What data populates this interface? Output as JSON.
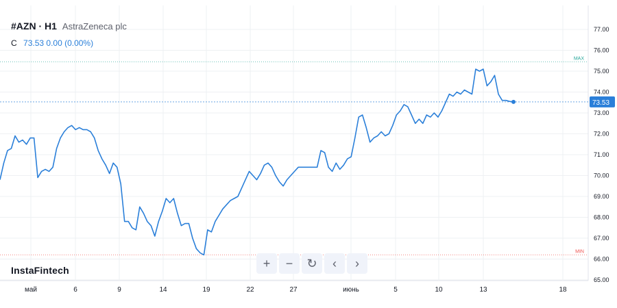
{
  "header": {
    "symbol": "#AZN · H1",
    "company": "AstraZeneca plc",
    "close_prefix": "C",
    "close_value": "73.53",
    "change": "0.00 (0.00%)"
  },
  "brand": "InstaFintech",
  "toolbar": [
    {
      "icon": "plus-icon",
      "glyph": "+"
    },
    {
      "icon": "minus-icon",
      "glyph": "−"
    },
    {
      "icon": "reset-icon",
      "glyph": "↻"
    },
    {
      "icon": "chevron-left-icon",
      "glyph": "‹"
    },
    {
      "icon": "chevron-right-icon",
      "glyph": "›"
    }
  ],
  "colors": {
    "line": "#2a7fd9",
    "grid": "#eef0f3",
    "max_marker": "#26a69a",
    "min_marker": "#ef5350",
    "price_tag": "#2a7fd9"
  },
  "chart_data": {
    "type": "line",
    "ylim": [
      65.0,
      77.5
    ],
    "yticks": [
      "77.00",
      "76.00",
      "75.00",
      "74.00",
      "73.00",
      "72.00",
      "71.00",
      "70.00",
      "69.00",
      "68.00",
      "67.00",
      "66.00",
      "65.00"
    ],
    "x_tick_labels": [
      "май",
      "6",
      "9",
      "14",
      "19",
      "22",
      "27",
      "июнь",
      "5",
      "10",
      "13",
      "18"
    ],
    "max_value": 75.45,
    "max_label": "MAX",
    "min_value": 66.2,
    "min_label": "MIN",
    "last_price": 73.53,
    "last_price_label": "73.53",
    "series": [
      {
        "values": [
          69.8,
          70.6,
          71.2,
          71.3,
          71.9,
          71.6,
          71.7,
          71.5,
          71.8,
          71.8,
          69.9,
          70.2,
          70.3,
          70.2,
          70.4,
          71.3,
          71.8,
          72.1,
          72.3,
          72.4,
          72.2,
          72.3,
          72.2,
          72.2,
          72.1,
          71.8,
          71.2,
          70.8,
          70.5,
          70.1,
          70.6,
          70.4,
          69.6,
          67.8,
          67.8,
          67.5,
          67.4,
          68.5,
          68.2,
          67.8,
          67.6,
          67.1,
          67.8,
          68.3,
          68.9,
          68.7,
          68.9,
          68.2,
          67.6,
          67.7,
          67.7,
          67.0,
          66.5,
          66.3,
          66.2,
          67.4,
          67.3,
          67.8,
          68.1,
          68.4,
          68.6,
          68.8,
          68.9,
          69.0,
          69.4,
          69.8,
          70.2,
          70.0,
          69.8,
          70.1,
          70.5,
          70.6,
          70.4,
          70.0,
          69.7,
          69.5,
          69.8,
          70.0,
          70.2,
          70.4,
          70.4,
          70.4,
          70.4,
          70.4,
          70.4,
          71.2,
          71.1,
          70.4,
          70.2,
          70.6,
          70.3,
          70.5,
          70.8,
          70.9,
          71.8,
          72.8,
          72.9,
          72.3,
          71.6,
          71.8,
          71.9,
          72.1,
          71.9,
          72.0,
          72.4,
          72.9,
          73.1,
          73.4,
          73.3,
          72.9,
          72.5,
          72.7,
          72.5,
          72.9,
          72.8,
          73.0,
          72.8,
          73.1,
          73.5,
          73.9,
          73.8,
          74.0,
          73.9,
          74.1,
          74.0,
          73.9,
          75.1,
          75.0,
          75.1,
          74.3,
          74.5,
          74.8,
          73.9,
          73.6,
          73.6,
          73.55,
          73.53
        ]
      }
    ]
  }
}
